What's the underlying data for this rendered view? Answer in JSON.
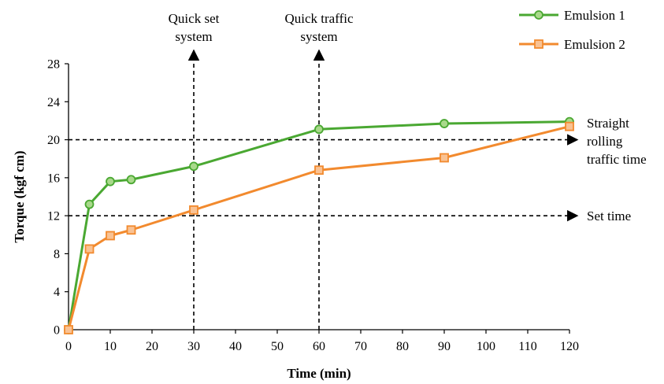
{
  "chart_data": {
    "type": "line",
    "xlabel": "Time (min)",
    "ylabel": "Torque (kgf cm)",
    "xlim": [
      0,
      120
    ],
    "ylim": [
      0,
      28
    ],
    "x_ticks": [
      0,
      10,
      20,
      30,
      40,
      50,
      60,
      70,
      80,
      90,
      100,
      110,
      120
    ],
    "y_ticks": [
      0,
      4,
      8,
      12,
      16,
      20,
      24,
      28
    ],
    "grid": false,
    "legend_position": "top-right",
    "series": [
      {
        "name": "Emulsion 1",
        "color": "#4aa832",
        "fill": "#a9d98b",
        "marker": "circle",
        "x": [
          0,
          5,
          10,
          15,
          30,
          60,
          90,
          120
        ],
        "y": [
          0,
          13.2,
          15.6,
          15.8,
          17.2,
          21.1,
          21.7,
          21.9
        ]
      },
      {
        "name": "Emulsion 2",
        "color": "#f28a2e",
        "fill": "#f9c293",
        "marker": "square",
        "x": [
          0,
          5,
          10,
          15,
          30,
          60,
          90,
          120
        ],
        "y": [
          0,
          8.5,
          9.9,
          10.5,
          12.6,
          16.8,
          18.1,
          21.4
        ]
      }
    ],
    "reference_lines": [
      {
        "orientation": "vertical",
        "x": 30,
        "label_lines": [
          "Quick set",
          "system"
        ]
      },
      {
        "orientation": "vertical",
        "x": 60,
        "label_lines": [
          "Quick traffic",
          "system"
        ]
      },
      {
        "orientation": "horizontal",
        "y": 20,
        "label_lines": [
          "Straight",
          "rolling",
          "traffic time"
        ]
      },
      {
        "orientation": "horizontal",
        "y": 12,
        "label_lines": [
          "Set time"
        ]
      }
    ]
  }
}
